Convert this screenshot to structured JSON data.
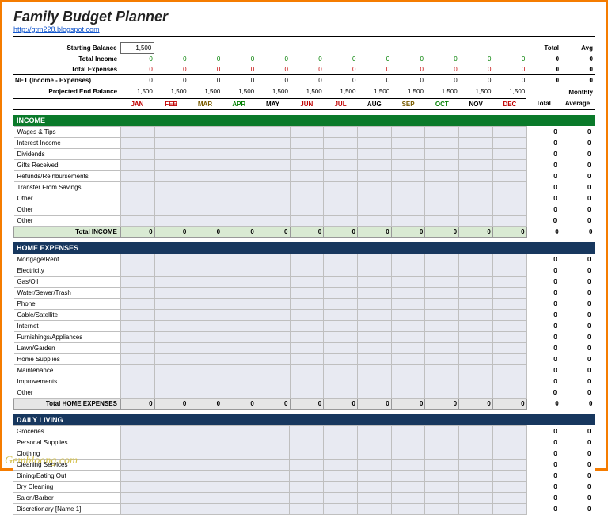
{
  "title": "Family Budget Planner",
  "link": "http://gtm228.blogspot.com",
  "watermark": "Gembloong.com",
  "months": [
    "JAN",
    "FEB",
    "MAR",
    "APR",
    "MAY",
    "JUN",
    "JUL",
    "AUG",
    "SEP",
    "OCT",
    "NOV",
    "DEC"
  ],
  "month_colors": [
    "#c00000",
    "#c00000",
    "#7a5c00",
    "#008000",
    "#000000",
    "#c00000",
    "#c00000",
    "#000000",
    "#7a5c00",
    "#008000",
    "#000000",
    "#c00000"
  ],
  "header_totals": {
    "total_label": "Total",
    "avg_label": "Avg",
    "monthly_label": "Monthly",
    "total2_label": "Total",
    "average_label": "Average"
  },
  "summary": {
    "starting_balance_label": "Starting Balance",
    "starting_balance": "1,500",
    "total_income_label": "Total Income",
    "total_income": [
      "0",
      "0",
      "0",
      "0",
      "0",
      "0",
      "0",
      "0",
      "0",
      "0",
      "0",
      "0"
    ],
    "total_income_total": "0",
    "total_income_avg": "0",
    "total_expenses_label": "Total Expenses",
    "total_expenses": [
      "0",
      "0",
      "0",
      "0",
      "0",
      "0",
      "0",
      "0",
      "0",
      "0",
      "0",
      "0"
    ],
    "total_expenses_total": "0",
    "total_expenses_avg": "0",
    "net_label": "NET (Income - Expenses)",
    "net": [
      "0",
      "0",
      "0",
      "0",
      "0",
      "0",
      "0",
      "0",
      "0",
      "0",
      "0",
      "0"
    ],
    "net_total": "0",
    "net_avg": "0",
    "proj_label": "Projected End Balance",
    "proj": [
      "1,500",
      "1,500",
      "1,500",
      "1,500",
      "1,500",
      "1,500",
      "1,500",
      "1,500",
      "1,500",
      "1,500",
      "1,500",
      "1,500"
    ]
  },
  "sections": [
    {
      "name": "INCOME",
      "header_class": "green",
      "items": [
        "Wages & Tips",
        "Interest Income",
        "Dividends",
        "Gifts Received",
        "Refunds/Reinbursements",
        "Transfer From Savings",
        "Other",
        "Other",
        "Other"
      ],
      "subtotal_label": "Total INCOME",
      "subtotal": [
        "0",
        "0",
        "0",
        "0",
        "0",
        "0",
        "0",
        "0",
        "0",
        "0",
        "0",
        "0"
      ],
      "subtotal_class": ""
    },
    {
      "name": "HOME EXPENSES",
      "header_class": "",
      "items": [
        "Mortgage/Rent",
        "Electricity",
        "Gas/Oil",
        "Water/Sewer/Trash",
        "Phone",
        "Cable/Satellite",
        "Internet",
        "Furnishings/Appliances",
        "Lawn/Garden",
        "Home Supplies",
        "Maintenance",
        "Improvements",
        "Other"
      ],
      "subtotal_label": "Total HOME EXPENSES",
      "subtotal": [
        "0",
        "0",
        "0",
        "0",
        "0",
        "0",
        "0",
        "0",
        "0",
        "0",
        "0",
        "0"
      ],
      "subtotal_class": "grey"
    },
    {
      "name": "DAILY LIVING",
      "header_class": "",
      "items": [
        "Groceries",
        "Personal Supplies",
        "Clothing",
        "Cleaning Services",
        "Dining/Eating Out",
        "Dry Cleaning",
        "Salon/Barber",
        "Discretionary [Name 1]"
      ],
      "subtotal_label": "",
      "subtotal": [],
      "subtotal_class": ""
    }
  ],
  "item_total": "0",
  "item_avg": "0"
}
